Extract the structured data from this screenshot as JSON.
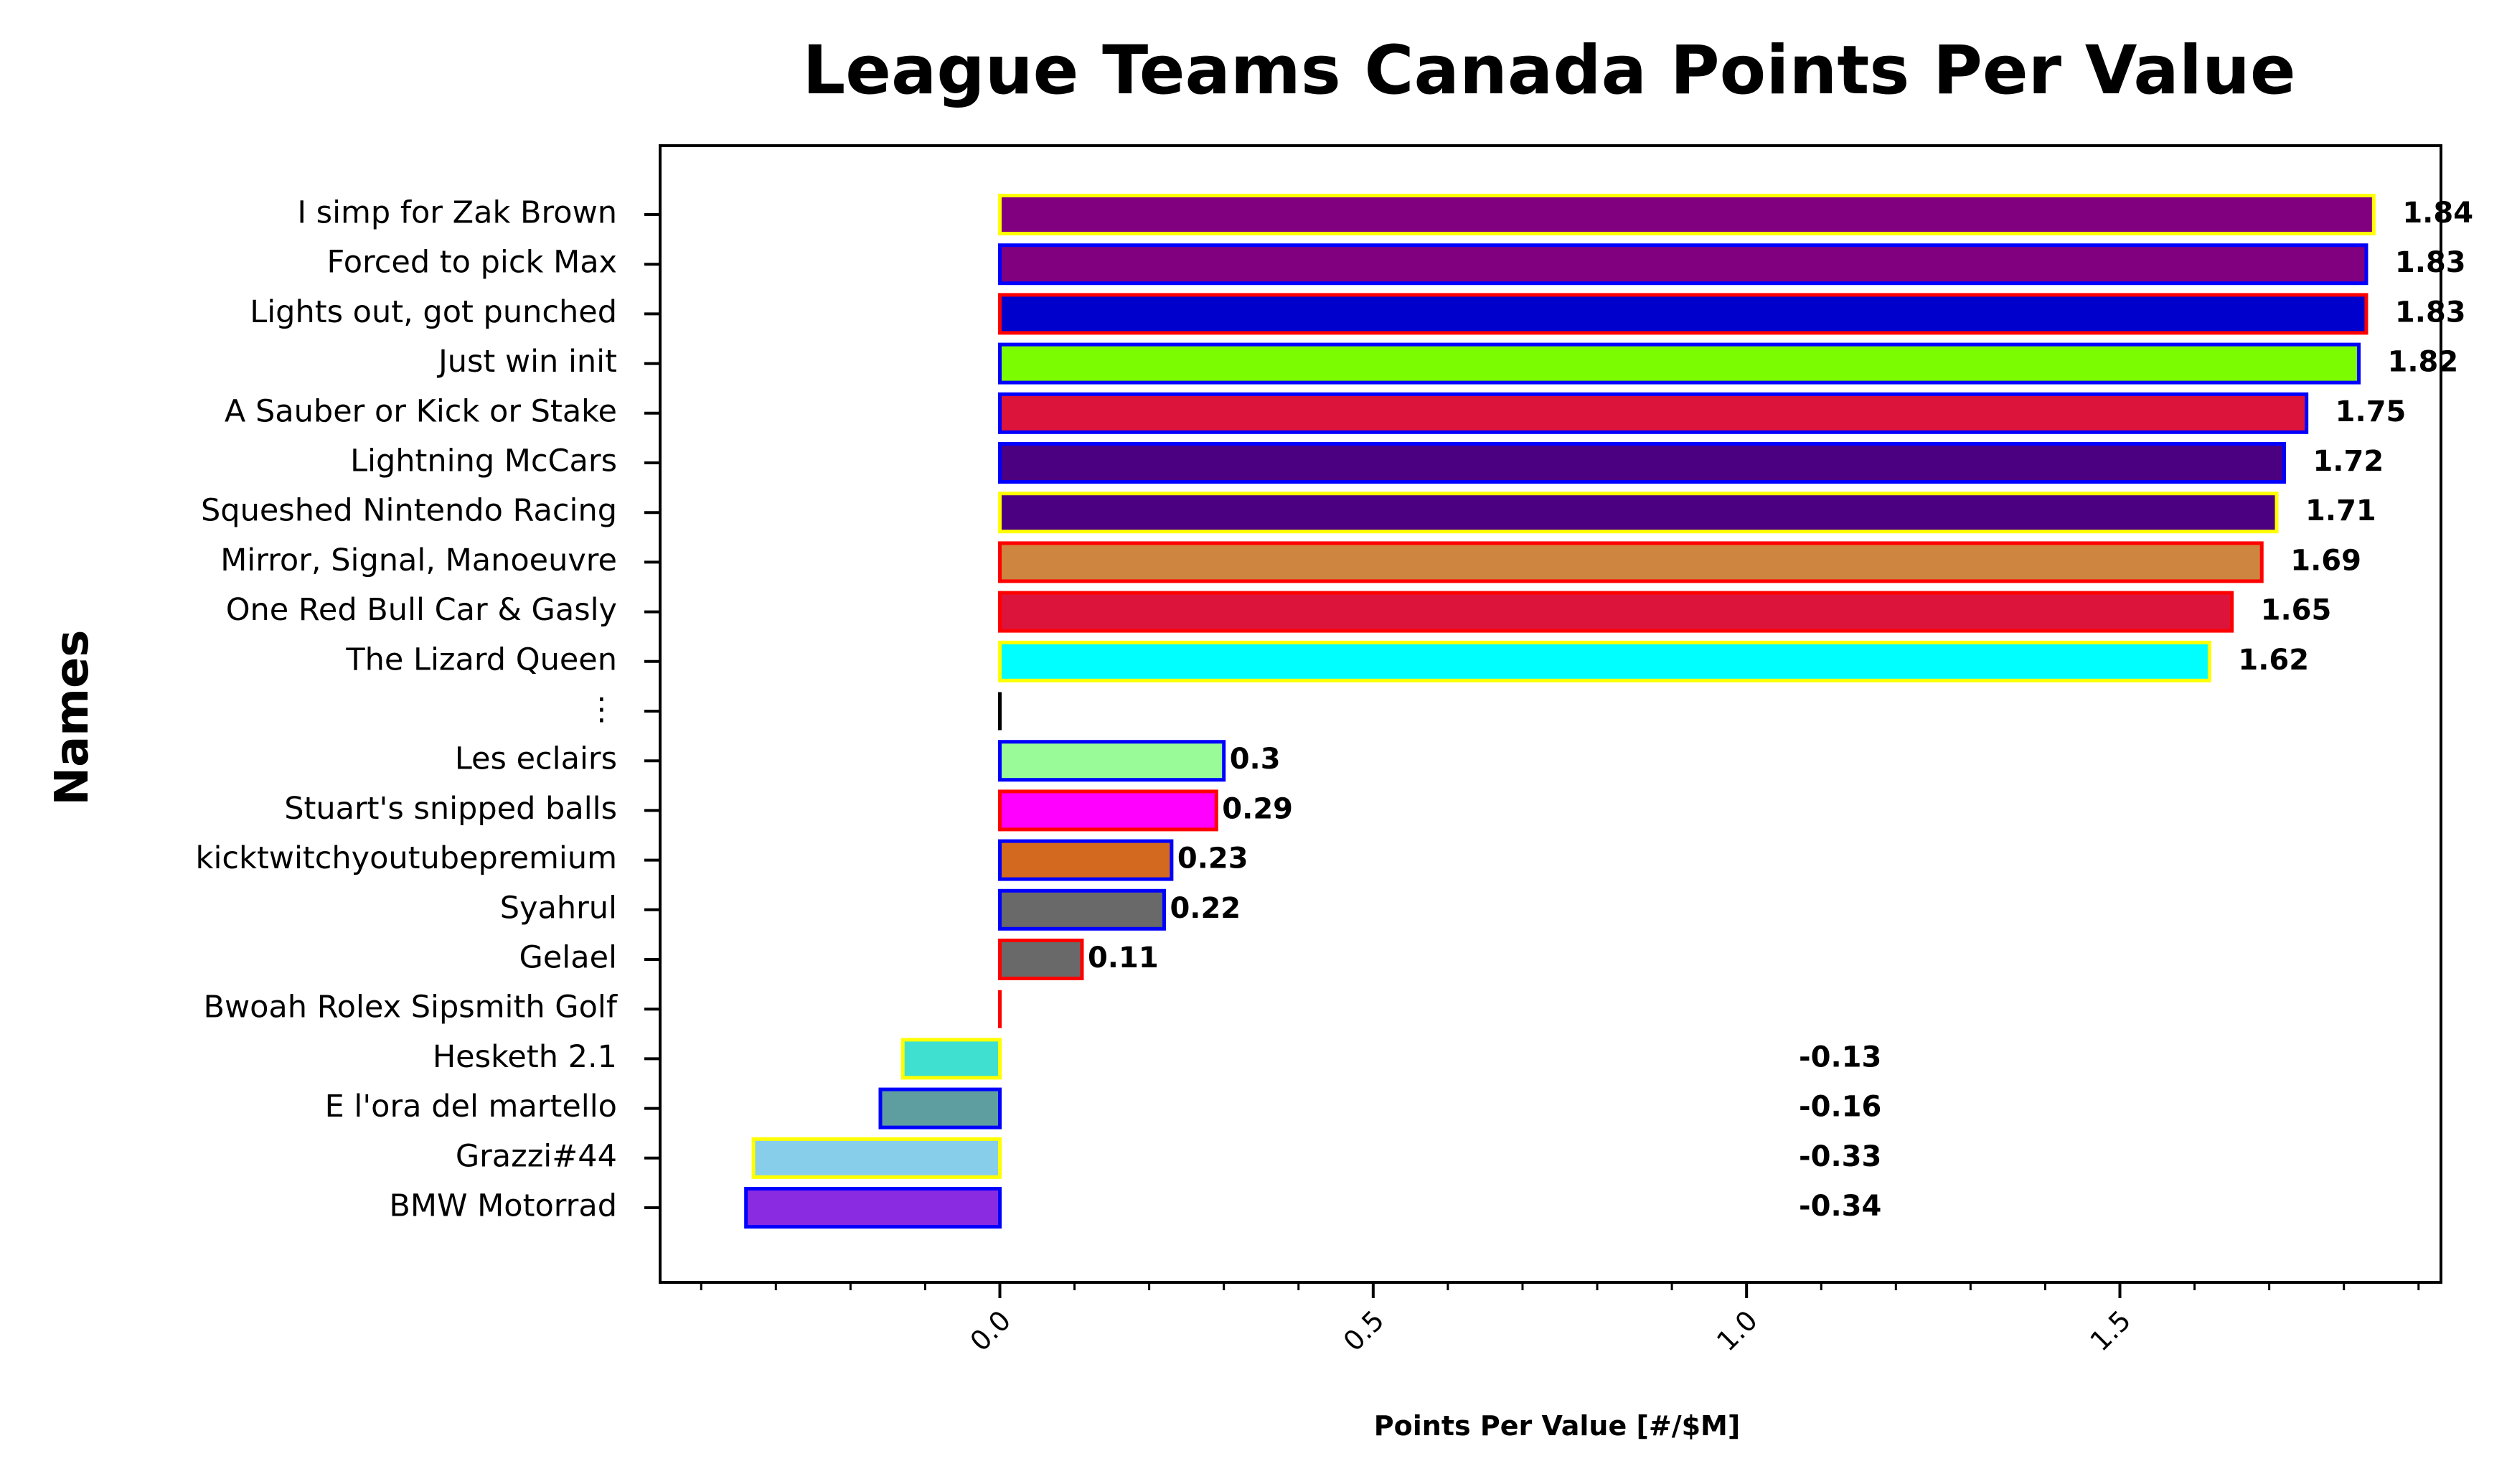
{
  "chart_data": {
    "type": "bar",
    "orientation": "horizontal",
    "title": "League Teams Canada Points Per Value",
    "xlabel": "Points Per Value [#/$M]",
    "ylabel": "Names",
    "xlim": [
      -0.455,
      1.93
    ],
    "xticks": [
      0.0,
      0.5,
      1.0,
      1.5
    ],
    "xtick_labels": [
      "0.0",
      "0.5",
      "1.0",
      "1.5"
    ],
    "minor_tick_step": 0.1,
    "grid": false,
    "legend": "none",
    "categories": [
      "I simp for Zak Brown",
      "Forced to pick Max",
      "Lights out, got punched",
      "Just win init",
      "A Sauber or Kick or Stake",
      "Lightning McCars",
      "Squeshed Nintendo Racing",
      "Mirror, Signal, Manoeuvre",
      "One Red Bull Car & Gasly",
      "The Lizard Queen",
      "⋮",
      "Les eclairs",
      "Stuart's snipped balls",
      "kicktwitchyoutubepremium",
      "Syahrul",
      "Gelael",
      "Bwoah Rolex Sipsmith Golf",
      "Hesketh 2.1",
      "E l'ora del martello",
      "Grazzi#44",
      "BMW Motorrad"
    ],
    "values": [
      1.84,
      1.83,
      1.83,
      1.82,
      1.75,
      1.72,
      1.71,
      1.69,
      1.65,
      1.62,
      0,
      0.3,
      0.29,
      0.23,
      0.22,
      0.11,
      0,
      -0.13,
      -0.16,
      -0.33,
      -0.34
    ],
    "value_labels": [
      "1.84",
      "1.83",
      "1.83",
      "1.82",
      "1.75",
      "1.72",
      "1.71",
      "1.69",
      "1.65",
      "1.62",
      "",
      "0.3",
      "0.29",
      "0.23",
      "0.22",
      "0.11",
      "",
      "-0.13",
      "-0.16",
      "-0.33",
      "-0.34"
    ],
    "fill_colors": [
      "#800080",
      "#800080",
      "#0000cd",
      "#7cfc00",
      "#dc143c",
      "#4b0082",
      "#4b0082",
      "#cd853f",
      "#dc143c",
      "#00ffff",
      "#000000",
      "#98fb98",
      "#ff00ff",
      "#d2691e",
      "#696969",
      "#696969",
      "#ff0000",
      "#40e0d0",
      "#5f9ea0",
      "#87ceeb",
      "#8a2be2"
    ],
    "edge_colors": [
      "#ffff00",
      "#0000ff",
      "#ff0000",
      "#0000ff",
      "#0000ff",
      "#0000ff",
      "#ffff00",
      "#ff0000",
      "#ff0000",
      "#ffff00",
      "#000000",
      "#0000ff",
      "#ff0000",
      "#0000ff",
      "#0000ff",
      "#ff0000",
      "#ff0000",
      "#ffff00",
      "#0000ff",
      "#ffff00",
      "#0000ff"
    ]
  }
}
